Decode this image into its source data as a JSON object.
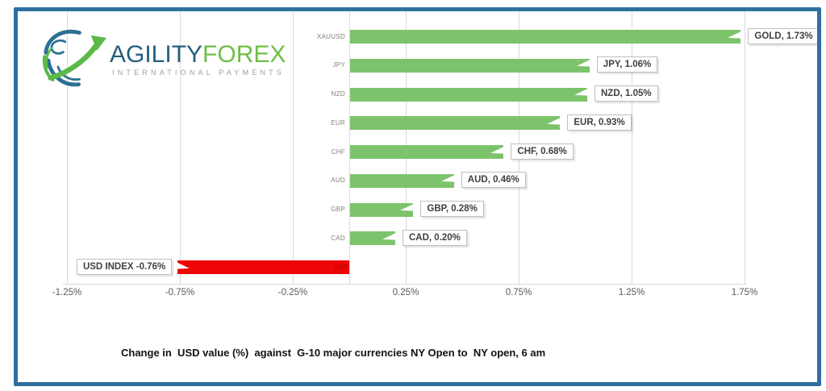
{
  "logo": {
    "brand_primary": "AGILITY",
    "brand_secondary": "FOREX",
    "tagline": "INTERNATIONAL PAYMENTS"
  },
  "caption": "Change in  USD value (%)  against  G-10 major currencies NY Open to  NY open, 6 am",
  "colors": {
    "positive_bar": "#7DC36B",
    "negative_bar": "#EE0505",
    "frame_border": "#2F6F9F",
    "brand_primary_color": "#25607F",
    "brand_secondary_color": "#6FBE44",
    "tagline_color": "#9AA0A5",
    "gridline": "#D9D9D9",
    "tick_text": "#595959",
    "category_text": "#7F7F7F",
    "callout_text": "#3F3F3F",
    "callout_border": "#BFBFBF"
  },
  "chart_data": {
    "type": "bar",
    "orientation": "horizontal",
    "title": "Change in USD value (%) against G-10 major currencies NY Open to NY open, 6 am",
    "categories": [
      "XAUUSD",
      "JPY",
      "NZD",
      "EUR",
      "CHF",
      "AUD",
      "GBP",
      "CAD",
      "USD"
    ],
    "values": [
      1.73,
      1.06,
      1.05,
      0.93,
      0.68,
      0.46,
      0.28,
      0.2,
      -0.76
    ],
    "data_labels": [
      "GOLD, 1.73%",
      "JPY, 1.06%",
      "NZD, 1.05%",
      "EUR, 0.93%",
      "CHF, 0.68%",
      "AUD, 0.46%",
      "GBP, 0.28%",
      "CAD, 0.20%",
      "USD INDEX -0.76%"
    ],
    "x_ticks": [
      -1.25,
      -0.75,
      -0.25,
      0.25,
      0.75,
      1.25,
      1.75
    ],
    "x_tick_labels": [
      "-1.25%",
      "-0.75%",
      "-0.25%",
      "0.25%",
      "0.75%",
      "1.25%",
      "1.75%"
    ],
    "xlim": [
      -1.5,
      1.95
    ],
    "grid": true,
    "legend": false
  }
}
